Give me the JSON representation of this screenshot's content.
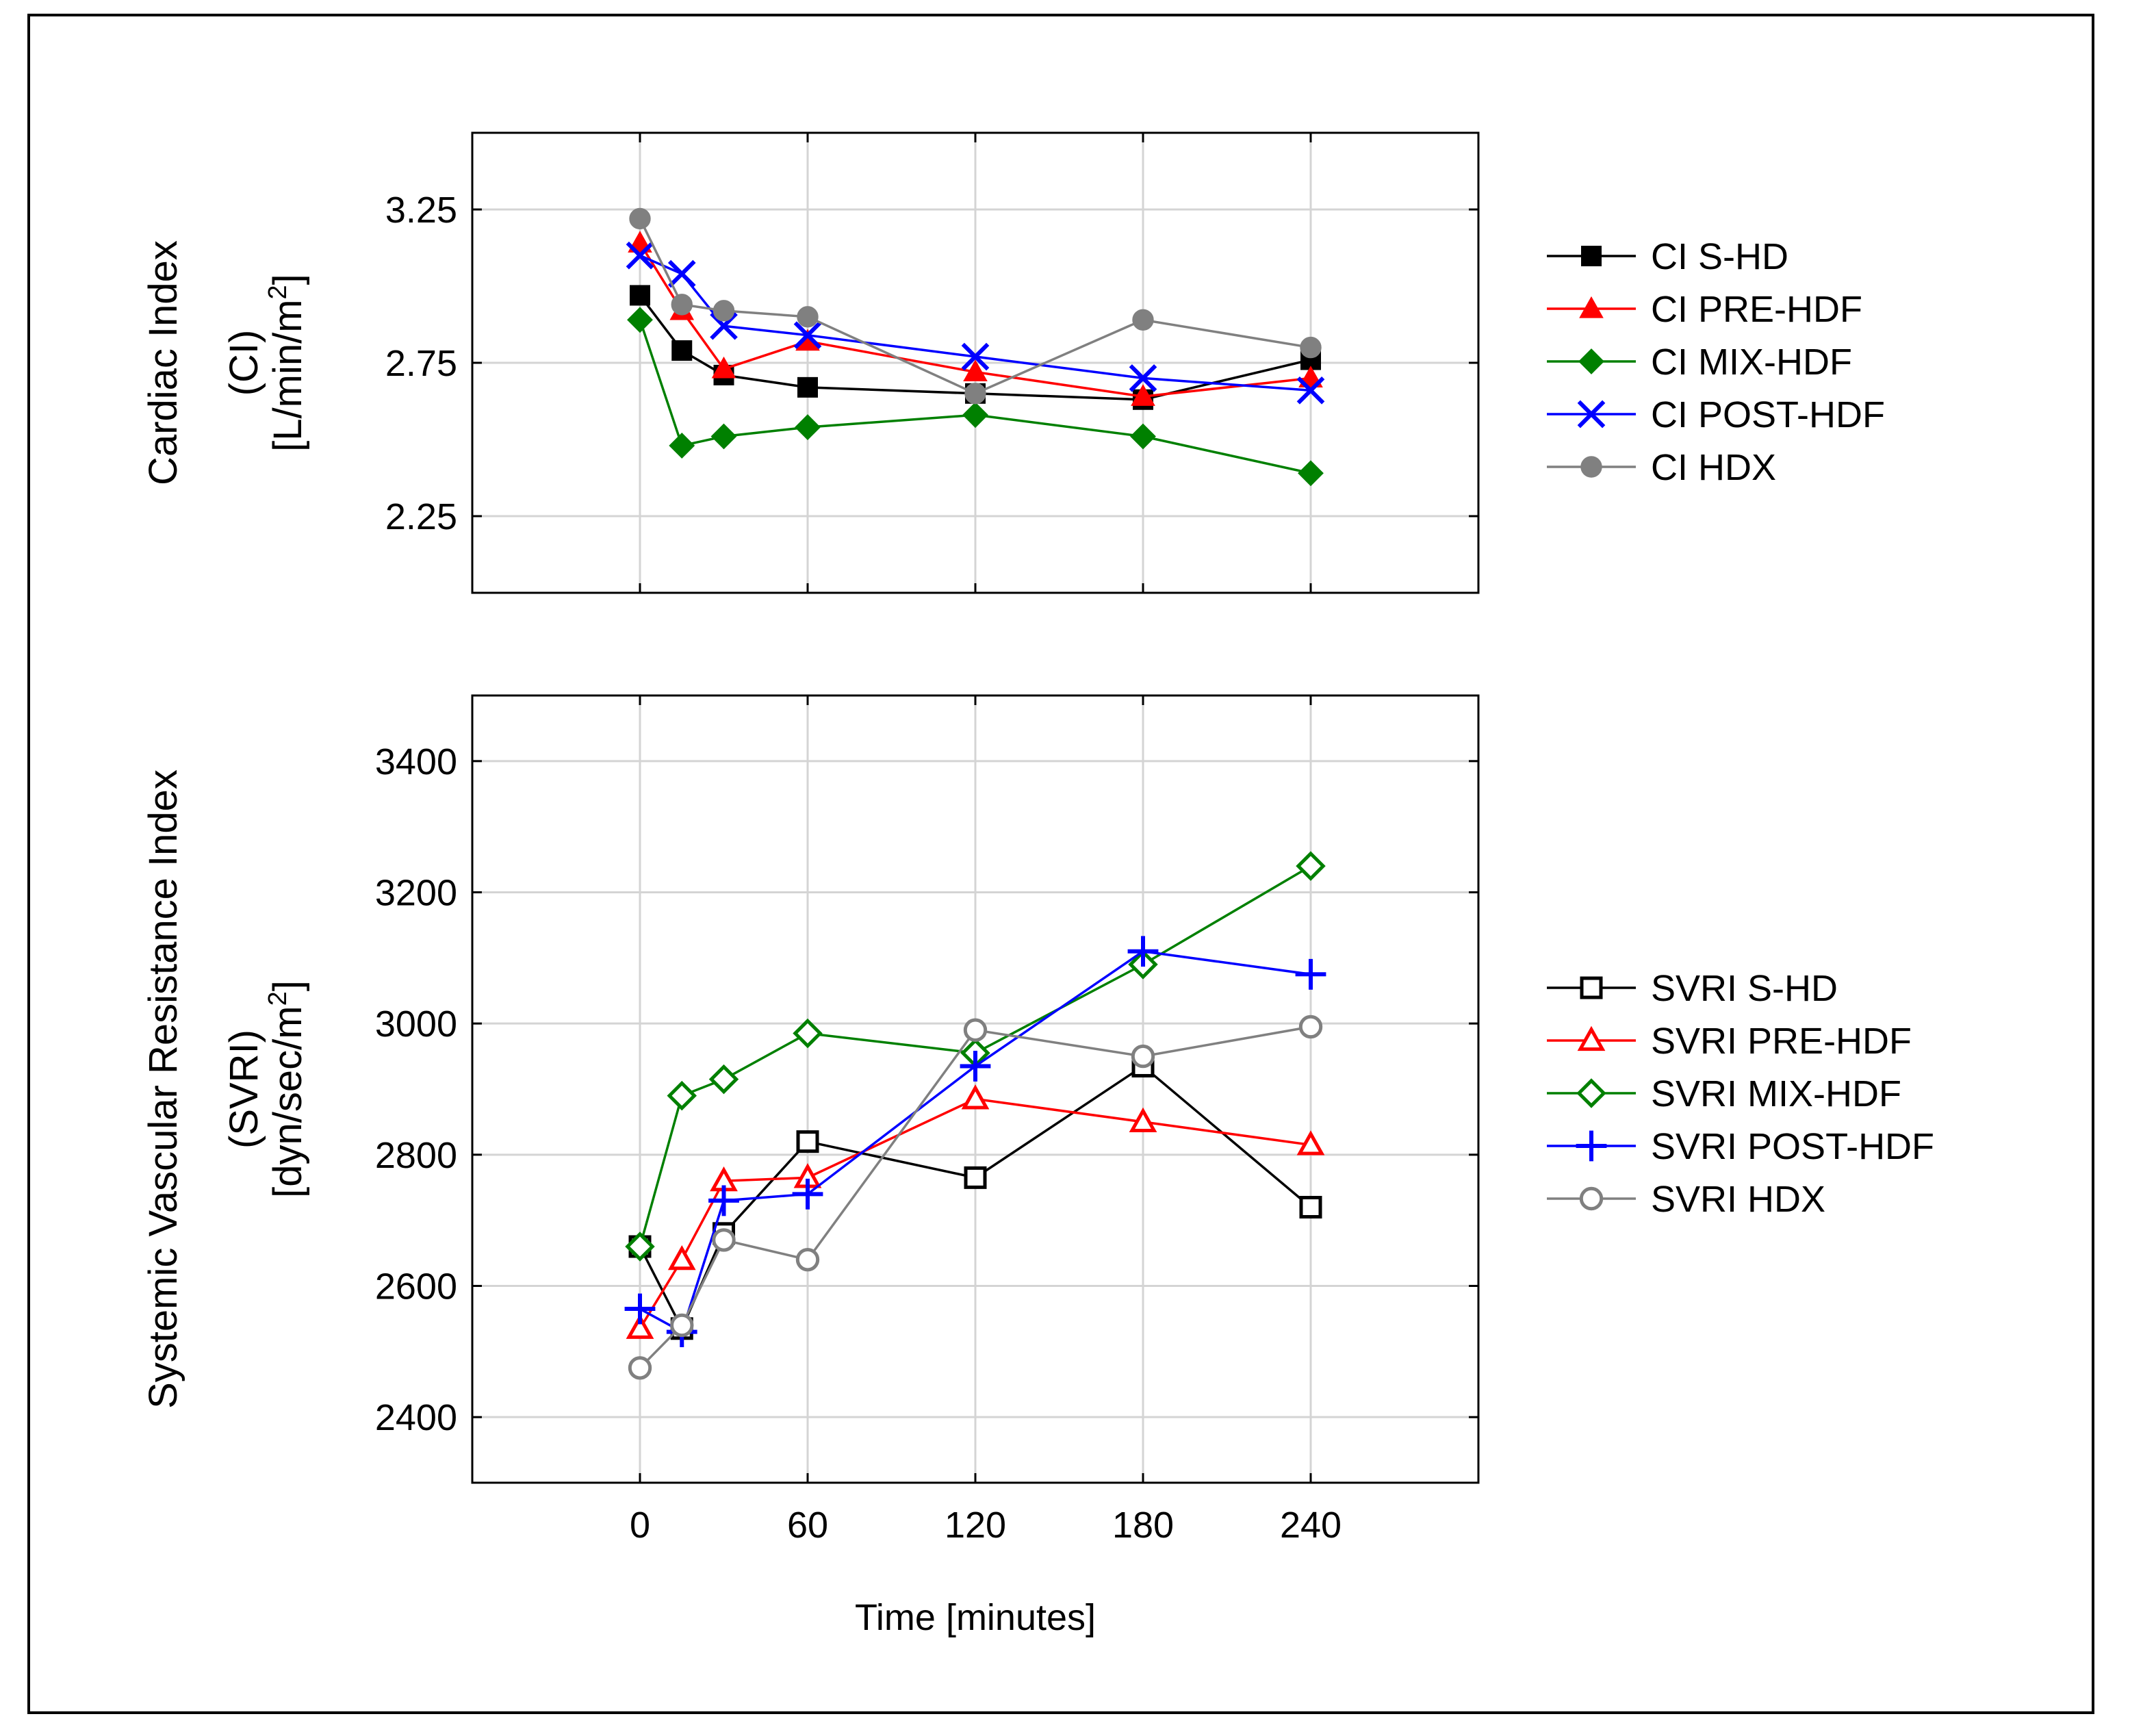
{
  "chart_data": [
    {
      "type": "line",
      "title": "",
      "ylabel_lines": [
        "Cardiac Index",
        "(CI)",
        "[L/min/m",
        "2",
        "]"
      ],
      "xlabel": "",
      "x": [
        0,
        15,
        30,
        60,
        120,
        180,
        240
      ],
      "xlim": [
        -60,
        300
      ],
      "ylim": [
        2.0,
        3.5
      ],
      "yticks": [
        2.25,
        2.75,
        3.25
      ],
      "ytick_labels": [
        "2.25",
        "2.75",
        "3.25"
      ],
      "grid": true,
      "legend_position": "right",
      "series": [
        {
          "name": "CI S-HD",
          "color": "#000000",
          "marker": "square-filled",
          "values": [
            2.97,
            2.79,
            2.71,
            2.67,
            2.65,
            2.63,
            2.76
          ]
        },
        {
          "name": "CI PRE-HDF",
          "color": "#ff0000",
          "marker": "triangle-filled",
          "values": [
            3.14,
            2.92,
            2.73,
            2.82,
            2.72,
            2.64,
            2.7
          ]
        },
        {
          "name": "CI MIX-HDF",
          "color": "#008000",
          "marker": "diamond-filled",
          "values": [
            2.89,
            2.48,
            2.51,
            2.54,
            2.58,
            2.51,
            2.39
          ]
        },
        {
          "name": "CI POST-HDF",
          "color": "#0000ff",
          "marker": "x",
          "values": [
            3.1,
            3.04,
            2.87,
            2.84,
            2.77,
            2.7,
            2.66
          ]
        },
        {
          "name": "CI HDX",
          "color": "#808080",
          "marker": "circle-filled",
          "values": [
            3.22,
            2.94,
            2.92,
            2.9,
            2.65,
            2.89,
            2.8
          ]
        }
      ]
    },
    {
      "type": "line",
      "title": "",
      "ylabel_lines": [
        "Systemic Vascular Resistance Index",
        "(SVRI)",
        "[dyn/sec/m",
        "2",
        "]"
      ],
      "xlabel": "Time [minutes]",
      "x": [
        0,
        15,
        30,
        60,
        120,
        180,
        240
      ],
      "xlim": [
        -60,
        300
      ],
      "xticks": [
        0,
        60,
        120,
        180,
        240
      ],
      "xtick_labels": [
        "0",
        "60",
        "120",
        "180",
        "240"
      ],
      "ylim": [
        2300,
        3500
      ],
      "yticks": [
        2400,
        2600,
        2800,
        3000,
        3200,
        3400
      ],
      "ytick_labels": [
        "2400",
        "2600",
        "2800",
        "3000",
        "3200",
        "3400"
      ],
      "grid": true,
      "legend_position": "right",
      "series": [
        {
          "name": "SVRI S-HD",
          "color": "#000000",
          "marker": "square-open",
          "values": [
            2660,
            2535,
            2680,
            2820,
            2765,
            2935,
            2720
          ]
        },
        {
          "name": "SVRI PRE-HDF",
          "color": "#ff0000",
          "marker": "triangle-open",
          "values": [
            2535,
            2640,
            2760,
            2765,
            2885,
            2850,
            2815
          ]
        },
        {
          "name": "SVRI MIX-HDF",
          "color": "#008000",
          "marker": "diamond-open",
          "values": [
            2660,
            2890,
            2915,
            2985,
            2955,
            3090,
            3240
          ]
        },
        {
          "name": "SVRI POST-HDF",
          "color": "#0000ff",
          "marker": "plus",
          "values": [
            2565,
            2530,
            2730,
            2740,
            2935,
            3110,
            3075
          ]
        },
        {
          "name": "SVRI HDX",
          "color": "#808080",
          "marker": "circle-open",
          "values": [
            2475,
            2540,
            2670,
            2640,
            2990,
            2950,
            2995
          ]
        }
      ]
    }
  ]
}
